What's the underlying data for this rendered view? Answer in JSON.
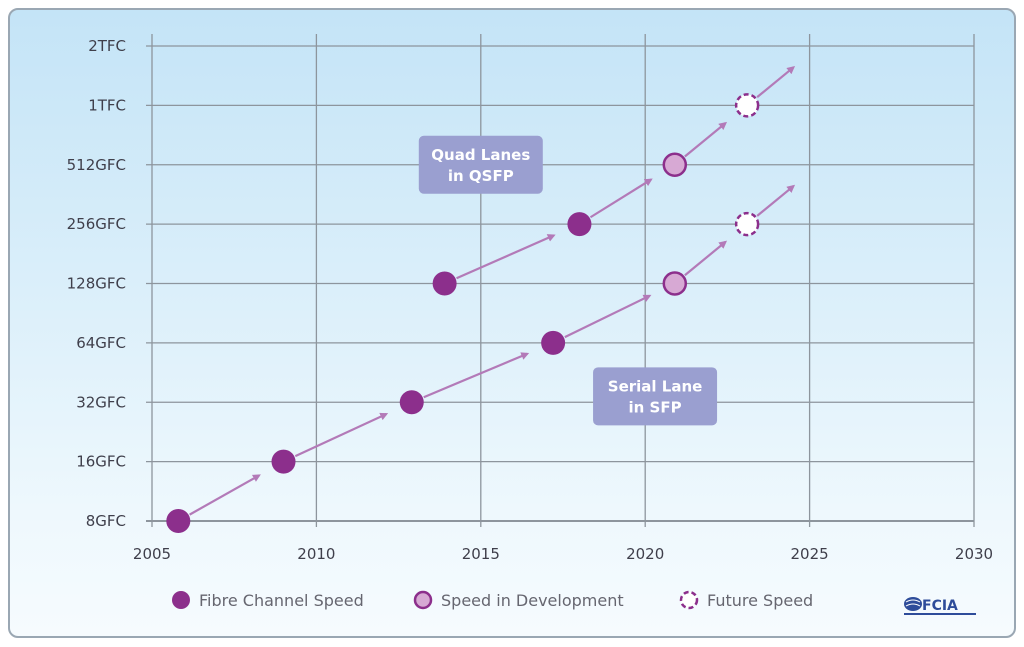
{
  "chart_data": {
    "type": "scatter",
    "x_ticks": [
      "2005",
      "2010",
      "2015",
      "2020",
      "2025",
      "2030"
    ],
    "xlim": [
      2005,
      2030
    ],
    "y_ticks": [
      "8GFC",
      "16GFC",
      "32GFC",
      "64GFC",
      "128GFC",
      "256GFC",
      "512GFC",
      "1TFC",
      "2TFC"
    ],
    "grid": true,
    "legend_position": "bottom",
    "legend": [
      {
        "label": "Fibre Channel Speed",
        "style": "filled"
      },
      {
        "label": "Speed in  Development",
        "style": "light"
      },
      {
        "label": "Future Speed",
        "style": "dashed"
      }
    ],
    "series": [
      {
        "name": "Serial Lane in SFP",
        "points": [
          {
            "x": 2005.8,
            "y": "8GFC",
            "status": "filled"
          },
          {
            "x": 2009.0,
            "y": "16GFC",
            "status": "filled"
          },
          {
            "x": 2012.9,
            "y": "32GFC",
            "status": "filled"
          },
          {
            "x": 2017.2,
            "y": "64GFC",
            "status": "filled"
          },
          {
            "x": 2020.9,
            "y": "128GFC",
            "status": "light"
          },
          {
            "x": 2023.1,
            "y": "256GFC",
            "status": "dashed"
          }
        ]
      },
      {
        "name": "Quad Lanes in QSFP",
        "points": [
          {
            "x": 2013.9,
            "y": "128GFC",
            "status": "filled"
          },
          {
            "x": 2018.0,
            "y": "256GFC",
            "status": "filled"
          },
          {
            "x": 2020.9,
            "y": "512GFC",
            "status": "light"
          },
          {
            "x": 2023.1,
            "y": "1TFC",
            "status": "dashed"
          }
        ]
      }
    ],
    "annotations": [
      {
        "lines": [
          "Quad Lanes",
          "in QSFP"
        ],
        "x": 2015.0,
        "y_level": 6.0
      },
      {
        "lines": [
          "Serial Lane",
          "in SFP"
        ],
        "x": 2020.3,
        "y_level": 2.1
      }
    ]
  },
  "colors": {
    "filled": "#8c2f8c",
    "light_fill": "#d7a9d4",
    "line": "#b37ab8",
    "box": "#9a9fd0",
    "grid": "#8d959d"
  },
  "logo": {
    "text": "FCIA"
  }
}
